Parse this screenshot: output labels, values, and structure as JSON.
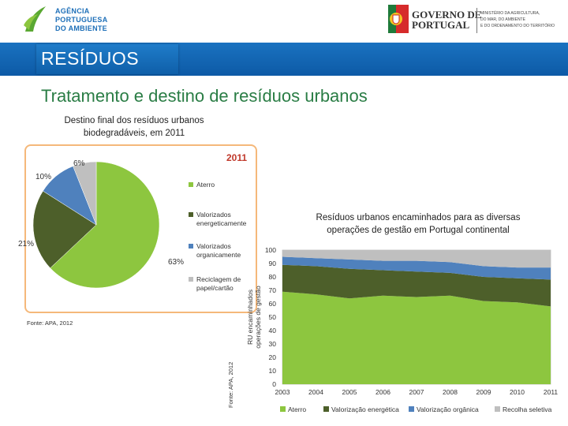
{
  "header": {
    "apa_logo": {
      "line1": "AGÊNCIA",
      "line2": "PORTUGUESA",
      "line3": "DO AMBIENTE"
    },
    "gov_logo": {
      "line1": "GOVERNO DE",
      "line2": "PORTUGAL",
      "ministry_line1": "MINISTÉRIO DA AGRICULTURA,",
      "ministry_line2": "DO MAR, DO AMBIENTE",
      "ministry_line3": "E DO ORDENAMENTO DO TERRITÓRIO"
    }
  },
  "banner": {
    "title": "RESÍDUOS"
  },
  "subtitle": "Tratamento e destino de resíduos urbanos",
  "pie": {
    "caption_line1": "Destino final dos resíduos urbanos",
    "caption_line2": "biodegradáveis, em 2011",
    "source": "Fonte: APA, 2012"
  },
  "area": {
    "title_line1": "Resíduos urbanos encaminhados para as diversas",
    "title_line2": "operações de gestão em Portugal continental",
    "source": "Fonte: APA, 2012"
  },
  "colors": {
    "aterro": "#8dc63f",
    "energetica": "#4d5f2a",
    "organica": "#4f81bd",
    "recolha": "#bfbfbf"
  },
  "chart_data": [
    {
      "type": "pie",
      "title": "2011",
      "categories": [
        "Aterro",
        "Valorizados energeticamente",
        "Valorizados organicamente",
        "Reciclagem de papel/cartão"
      ],
      "values": [
        63,
        21,
        10,
        6
      ],
      "value_labels": [
        "63%",
        "21%",
        "10%",
        "6%"
      ],
      "legend_position": "right"
    },
    {
      "type": "area",
      "ylabel": "RU encaminhados operações de gestão",
      "x": [
        "2003",
        "2004",
        "2005",
        "2006",
        "2007",
        "2008",
        "2009",
        "2010",
        "2011"
      ],
      "ylim": [
        0,
        100
      ],
      "yticks": [
        0,
        10,
        20,
        30,
        40,
        50,
        60,
        70,
        80,
        90,
        100
      ],
      "stacked": true,
      "series": [
        {
          "name": "Aterro",
          "values": [
            69,
            67,
            64,
            66,
            65,
            66,
            62,
            61,
            58
          ]
        },
        {
          "name": "Valorização energética",
          "values": [
            20,
            21,
            22,
            19,
            19,
            17,
            18,
            18,
            20
          ]
        },
        {
          "name": "Valorização orgânica",
          "values": [
            6,
            6,
            7,
            7,
            8,
            8,
            8,
            8,
            9
          ]
        },
        {
          "name": "Recolha seletiva",
          "values": [
            5,
            6,
            7,
            8,
            8,
            9,
            12,
            13,
            13
          ]
        }
      ],
      "legend_position": "bottom"
    }
  ]
}
